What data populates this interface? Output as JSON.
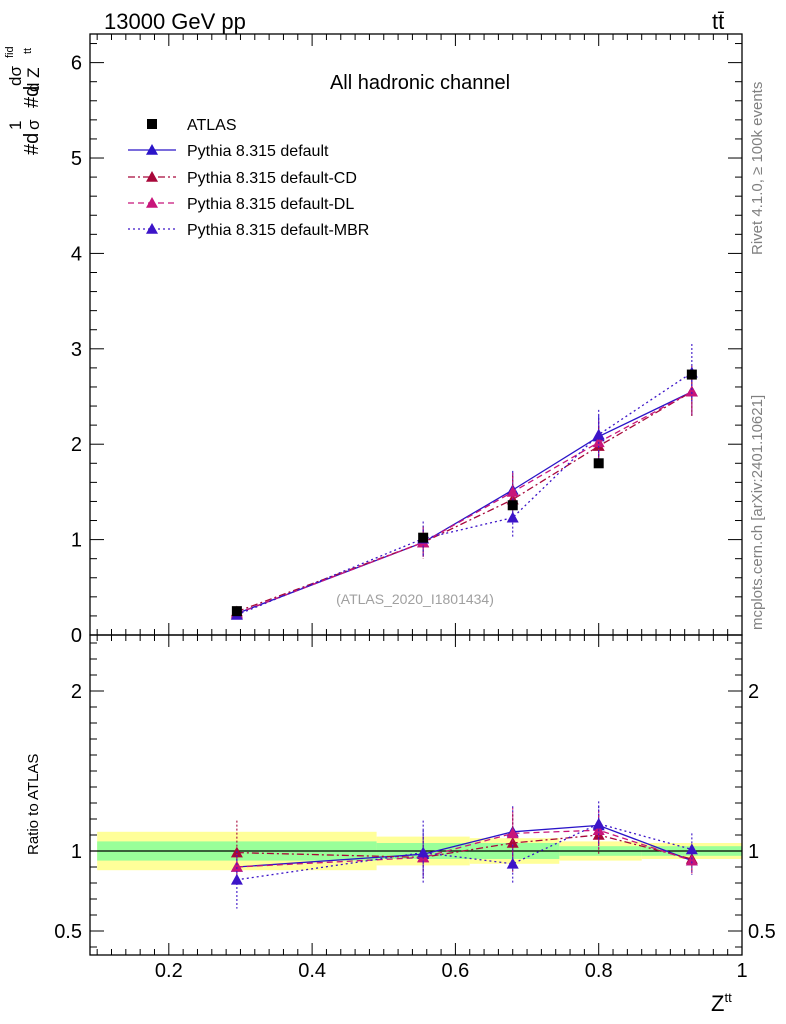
{
  "header": {
    "energy_label": "13000 GeV pp",
    "process_label": "tt̄"
  },
  "side_labels": {
    "rivet": "Rivet 4.1.0, ≥ 100k events",
    "source": "mcplots.cern.ch [arXiv:2401.10621]"
  },
  "chart_data": {
    "type": "line",
    "title": "All hadronic channel",
    "analysis_label": "(ATLAS_2020_I1801434)",
    "xlabel": "Z^tt",
    "ylabel_parts": {
      "a": "#d",
      "b": "1",
      "c": "σ",
      "d": "#d",
      "e": "dσ",
      "f": "fid",
      "g": "d Z",
      "h": "tt"
    },
    "ratio_ylabel": "Ratio to ATLAS",
    "xlim": [
      0.09,
      1.0
    ],
    "ylim": [
      0,
      6.3
    ],
    "ratio_ylim": [
      0.35,
      2.35
    ],
    "x_ticks": [
      0.2,
      0.4,
      0.6,
      0.8,
      1.0
    ],
    "x_tick_labels": [
      "0.2",
      "0.4",
      "0.6",
      "0.8",
      "1"
    ],
    "y_ticks": [
      0,
      1,
      2,
      3,
      4,
      5,
      6
    ],
    "y_tick_labels": [
      "0",
      "1",
      "2",
      "3",
      "4",
      "5",
      "6"
    ],
    "ratio_ticks": [
      0.5,
      1,
      2
    ],
    "ratio_tick_labels": [
      "0.5",
      "1",
      "2"
    ],
    "x": [
      0.295,
      0.555,
      0.68,
      0.8,
      0.93
    ],
    "bin_edges": [
      0.1,
      0.49,
      0.62,
      0.745,
      0.86,
      1.0
    ],
    "atlas": {
      "name": "ATLAS",
      "values": [
        0.25,
        1.02,
        1.36,
        1.8,
        2.73
      ],
      "band_green": [
        0.06,
        0.05,
        0.05,
        0.03,
        0.03
      ],
      "band_yellow": [
        0.12,
        0.09,
        0.08,
        0.06,
        0.05
      ]
    },
    "series": [
      {
        "name": "Pythia 8.315 default",
        "color": "#2a14c8",
        "dash": "none",
        "values": [
          0.225,
          0.97,
          1.52,
          2.08,
          2.55
        ],
        "errors": [
          0.02,
          0.15,
          0.2,
          0.22,
          0.25
        ],
        "ratio": [
          0.9,
          0.98,
          1.12,
          1.16,
          0.94
        ],
        "ratio_err": [
          0.08,
          0.15,
          0.16,
          0.12,
          0.09
        ]
      },
      {
        "name": "Pythia 8.315 default-CD",
        "color": "#a8083a",
        "dash": "7 3 2 3",
        "values": [
          0.245,
          0.97,
          1.42,
          1.98,
          2.55
        ],
        "errors": [
          0.03,
          0.17,
          0.25,
          0.2,
          0.27
        ],
        "ratio": [
          0.99,
          0.96,
          1.05,
          1.1,
          0.95
        ],
        "ratio_err": [
          0.2,
          0.13,
          0.18,
          0.12,
          0.09
        ]
      },
      {
        "name": "Pythia 8.315 default-DL",
        "color": "#c8157a",
        "dash": "6 4",
        "values": [
          0.225,
          0.97,
          1.5,
          2.02,
          2.55
        ],
        "errors": [
          0.02,
          0.15,
          0.2,
          0.22,
          0.25
        ],
        "ratio": [
          0.9,
          0.96,
          1.11,
          1.13,
          0.94
        ],
        "ratio_err": [
          0.08,
          0.13,
          0.16,
          0.12,
          0.08
        ]
      },
      {
        "name": "Pythia 8.315 default-MBR",
        "color": "#3c14c8",
        "dash": "2 3",
        "values": [
          0.21,
          1.01,
          1.23,
          2.1,
          2.75
        ],
        "errors": [
          0.02,
          0.18,
          0.2,
          0.26,
          0.3
        ],
        "ratio": [
          0.82,
          0.99,
          0.92,
          1.17,
          1.01
        ],
        "ratio_err": [
          0.18,
          0.2,
          0.12,
          0.14,
          0.1
        ]
      }
    ]
  }
}
